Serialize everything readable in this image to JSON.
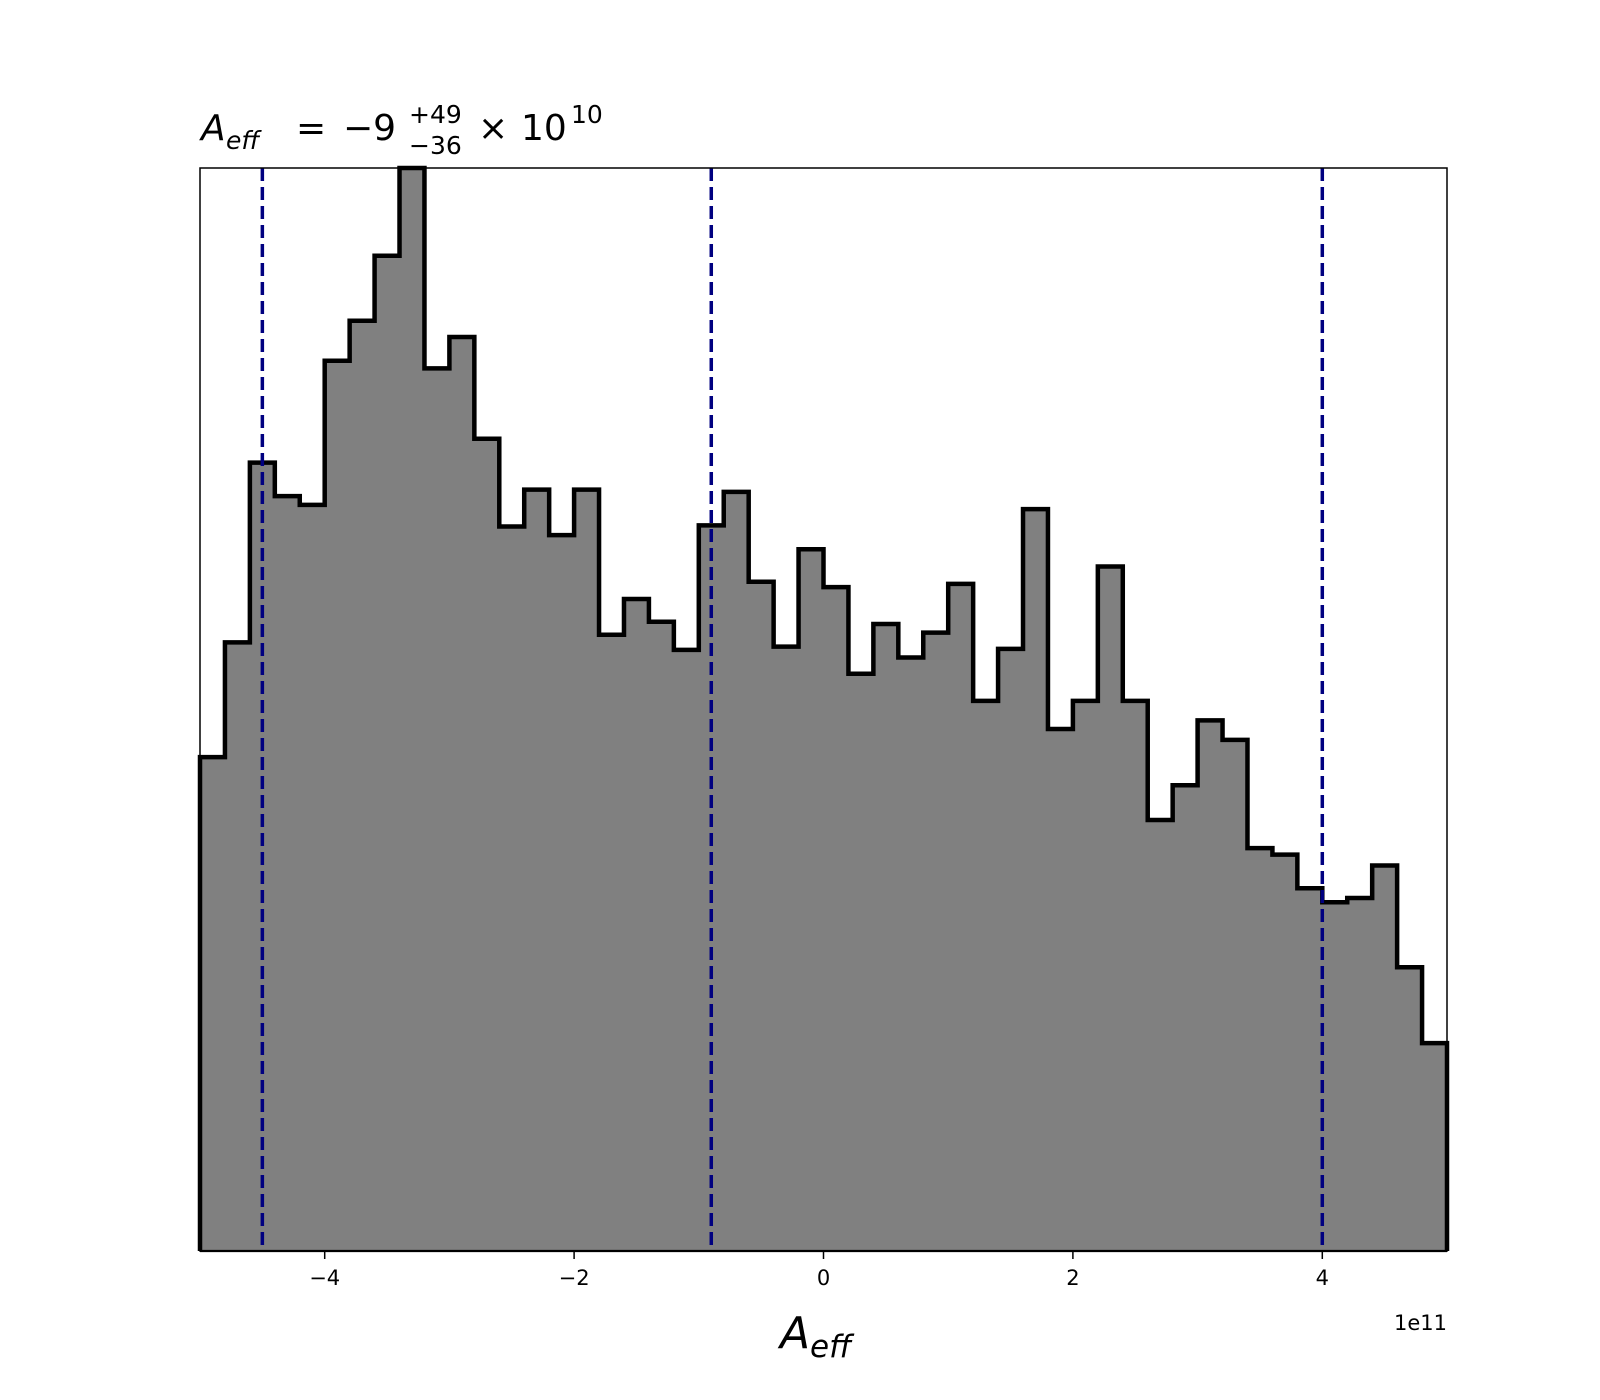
{
  "chart_data": {
    "type": "histogram",
    "title": {
      "symbol": "A",
      "symbol_subscript": "eff",
      "equals": "=",
      "value": "−9",
      "upper": "+49",
      "lower": "−36",
      "times": "×",
      "base": "10",
      "exponent": "10"
    },
    "xlabel": {
      "symbol": "A",
      "subscript": "eff"
    },
    "x_offset_label": "1e11",
    "xlim": [
      -5.0,
      5.0
    ],
    "ylim": [
      0,
      100
    ],
    "x_ticks": [
      -4,
      -2,
      0,
      2,
      4
    ],
    "x_tick_labels": [
      "−4",
      "−2",
      "0",
      "2",
      "4"
    ],
    "y_axis_visible": false,
    "bin_edges": [
      -5.0,
      -4.8,
      -4.6,
      -4.4,
      -4.2,
      -4.0,
      -3.8,
      -3.6,
      -3.4,
      -3.2,
      -3.0,
      -2.8,
      -2.6,
      -2.4,
      -2.2,
      -2.0,
      -1.8,
      -1.6,
      -1.4,
      -1.2,
      -1.0,
      -0.8,
      -0.6,
      -0.4,
      -0.2,
      0.0,
      0.2,
      0.4,
      0.6,
      0.8,
      1.0,
      1.2,
      1.4,
      1.6,
      1.8,
      2.0,
      2.2,
      2.4,
      2.6,
      2.8,
      3.0,
      3.2,
      3.4,
      3.6,
      3.8,
      4.0,
      4.2,
      4.4,
      4.6,
      4.8,
      5.0
    ],
    "counts": [
      45.6,
      56.2,
      72.8,
      69.7,
      68.9,
      82.2,
      85.9,
      91.9,
      100.0,
      81.5,
      84.4,
      75.0,
      66.9,
      70.3,
      66.1,
      70.3,
      56.9,
      60.2,
      58.1,
      55.5,
      67.0,
      70.1,
      61.8,
      55.8,
      64.8,
      61.3,
      53.3,
      57.9,
      54.8,
      57.1,
      61.6,
      50.8,
      55.6,
      68.5,
      48.2,
      50.8,
      63.2,
      50.8,
      39.8,
      43.0,
      49.0,
      47.2,
      37.2,
      36.6,
      33.5,
      32.2,
      32.6,
      35.6,
      26.2,
      19.2
    ],
    "fill_color": "#808080",
    "edge_color": "#000000",
    "quantile_lines": [
      -4.5,
      -0.9,
      4.0
    ],
    "quantile_line_color": "#000080",
    "quantile_line_style": "dashed"
  }
}
